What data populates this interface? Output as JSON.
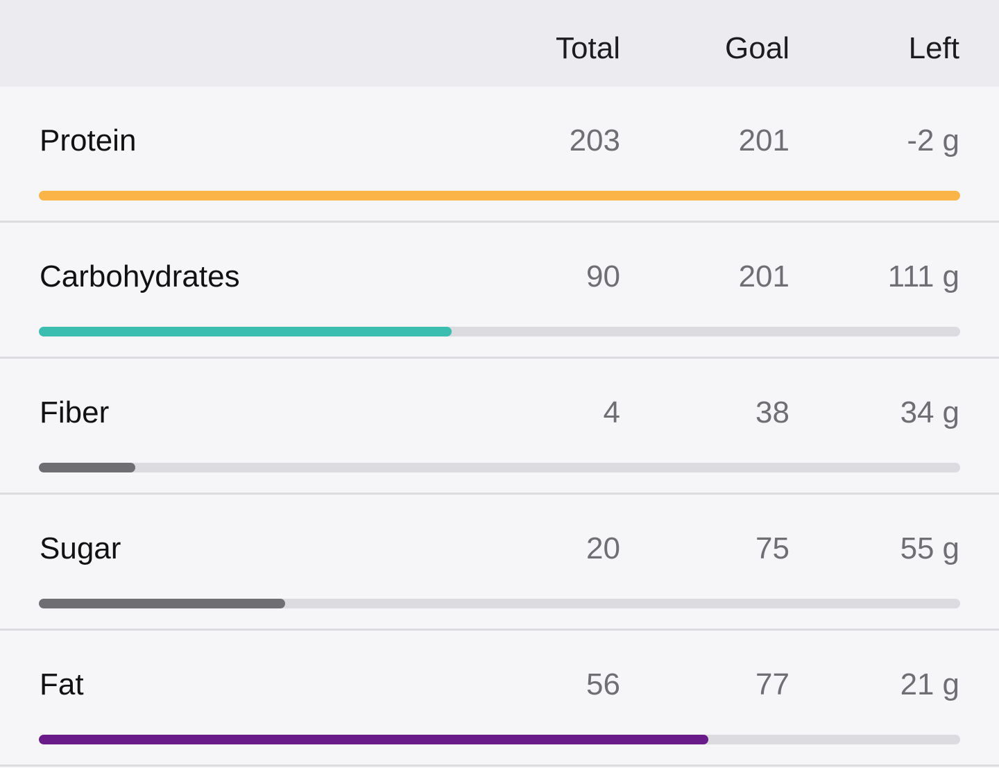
{
  "header": {
    "total_label": "Total",
    "goal_label": "Goal",
    "left_label": "Left"
  },
  "nutrients": [
    {
      "name": "Protein",
      "total": "203",
      "goal": "201",
      "left": "-2",
      "unit": "g",
      "progress": 1.0,
      "color": "#fbb448"
    },
    {
      "name": "Carbohydrates",
      "total": "90",
      "goal": "201",
      "left": "111",
      "unit": "g",
      "progress": 0.448,
      "color": "#3bbdb0"
    },
    {
      "name": "Fiber",
      "total": "4",
      "goal": "38",
      "left": "34",
      "unit": "g",
      "progress": 0.105,
      "color": "#6e6e73"
    },
    {
      "name": "Sugar",
      "total": "20",
      "goal": "75",
      "left": "55",
      "unit": "g",
      "progress": 0.267,
      "color": "#6e6e73"
    },
    {
      "name": "Fat",
      "total": "56",
      "goal": "77",
      "left": "21",
      "unit": "g",
      "progress": 0.727,
      "color": "#6a1b8a"
    }
  ]
}
